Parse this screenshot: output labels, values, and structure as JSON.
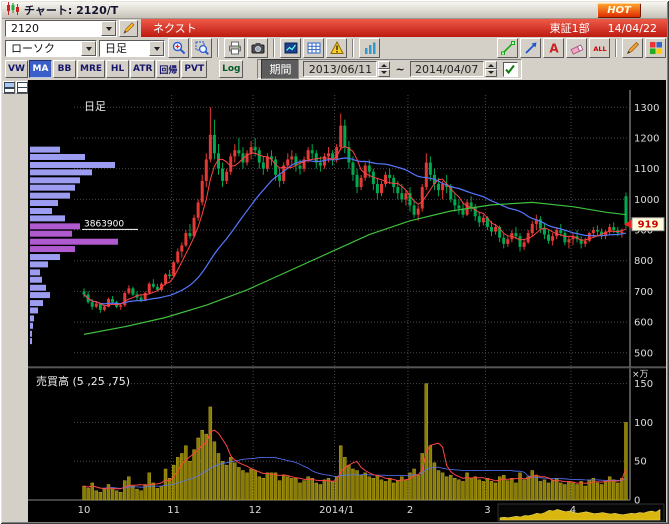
{
  "window": {
    "title": "チャート: 2120/T",
    "hot_label": "HOT"
  },
  "ticker_bar": {
    "code": "2120",
    "name": "ネクスト",
    "exchange": "東証1部",
    "date": "14/04/22"
  },
  "toolbar": {
    "chart_type": "ローソク",
    "timeframe": "日足",
    "left_icons": [
      {
        "name": "zoom-in-icon"
      },
      {
        "name": "zoom-area-icon"
      },
      {
        "name": "sep"
      },
      {
        "name": "print-icon"
      },
      {
        "name": "camera-icon"
      },
      {
        "name": "sep"
      },
      {
        "name": "board-icon"
      },
      {
        "name": "grid-icon"
      },
      {
        "name": "alert-icon"
      },
      {
        "name": "sep"
      },
      {
        "name": "chart-mode-icon"
      }
    ],
    "right_icons": [
      {
        "name": "trendline-icon"
      },
      {
        "name": "arrow-icon"
      },
      {
        "name": "text-icon"
      },
      {
        "name": "eraser-icon"
      },
      {
        "name": "clear-all-icon"
      },
      {
        "name": "sep"
      },
      {
        "name": "pen-icon"
      },
      {
        "name": "palette-icon"
      }
    ]
  },
  "indicator_bar": {
    "buttons": [
      {
        "label": "VW",
        "active": false
      },
      {
        "label": "MA",
        "active": true
      },
      {
        "label": "BB",
        "active": false
      },
      {
        "label": "MRE",
        "active": false
      },
      {
        "label": "HL",
        "active": false
      },
      {
        "label": "ATR",
        "active": false
      },
      {
        "label": "回帰",
        "active": false
      },
      {
        "label": "PVT",
        "active": false
      }
    ],
    "log_label": "Log",
    "period_label": "期間",
    "date_from": "2013/06/11",
    "tilde": "~",
    "date_to": "2014/04/07"
  },
  "chart": {
    "pane_label": "日足",
    "volume_label": "売買高 (5 ,25 ,75)",
    "volume_unit": "×万",
    "marker_value": "3863900",
    "current_price": "919",
    "colors": {
      "up": "#e53935",
      "down": "#00a84f",
      "ma5": "#ff4444",
      "ma25": "#5577ff",
      "ma75": "#3fbf3f",
      "volume": "#8a7d00",
      "volume_edge": "#c9b832",
      "profile": "#9c9cf0",
      "profile_hl": "#b05ad0",
      "minimap": "#d9b70e"
    }
  },
  "chart_data": {
    "type": "candlestick",
    "title": "日足",
    "subtitle": "売買高 (5 ,25 ,75)",
    "price_ylim": [
      470,
      1340
    ],
    "price_ticks": [
      1300,
      1200,
      1100,
      1000,
      900,
      800,
      700,
      600,
      500
    ],
    "volume_ylim": [
      0,
      165
    ],
    "volume_ticks": [
      150,
      100,
      50,
      0
    ],
    "x_labels": [
      {
        "label": "10",
        "i": 0
      },
      {
        "label": "11",
        "i": 22
      },
      {
        "label": "12",
        "i": 42
      },
      {
        "label": "2014/1",
        "i": 62
      },
      {
        "label": "2",
        "i": 80
      },
      {
        "label": "3",
        "i": 99
      },
      {
        "label": "4",
        "i": 120
      }
    ],
    "ma_periods": [
      5,
      25,
      75
    ],
    "marker_price": 912,
    "current_price_value": 919,
    "candles": [
      [
        700,
        710,
        680,
        690
      ],
      [
        690,
        700,
        660,
        665
      ],
      [
        665,
        675,
        640,
        650
      ],
      [
        650,
        668,
        645,
        660
      ],
      [
        660,
        662,
        630,
        640
      ],
      [
        640,
        655,
        635,
        650
      ],
      [
        650,
        680,
        648,
        675
      ],
      [
        675,
        685,
        660,
        665
      ],
      [
        665,
        670,
        645,
        650
      ],
      [
        650,
        660,
        640,
        655
      ],
      [
        655,
        700,
        650,
        695
      ],
      [
        695,
        720,
        690,
        710
      ],
      [
        710,
        715,
        685,
        690
      ],
      [
        690,
        700,
        670,
        680
      ],
      [
        680,
        690,
        665,
        670
      ],
      [
        670,
        700,
        668,
        695
      ],
      [
        695,
        730,
        690,
        725
      ],
      [
        725,
        740,
        710,
        715
      ],
      [
        715,
        725,
        700,
        705
      ],
      [
        705,
        730,
        700,
        725
      ],
      [
        725,
        760,
        720,
        755
      ],
      [
        755,
        770,
        740,
        750
      ],
      [
        750,
        800,
        745,
        795
      ],
      [
        795,
        840,
        790,
        830
      ],
      [
        830,
        860,
        810,
        850
      ],
      [
        850,
        900,
        845,
        890
      ],
      [
        890,
        920,
        870,
        880
      ],
      [
        880,
        950,
        875,
        940
      ],
      [
        940,
        1000,
        930,
        990
      ],
      [
        990,
        1080,
        980,
        1060
      ],
      [
        1060,
        1150,
        1040,
        1130
      ],
      [
        1130,
        1300,
        1120,
        1210
      ],
      [
        1210,
        1260,
        1130,
        1150
      ],
      [
        1150,
        1180,
        1080,
        1100
      ],
      [
        1100,
        1120,
        1040,
        1060
      ],
      [
        1060,
        1100,
        1050,
        1090
      ],
      [
        1090,
        1150,
        1080,
        1140
      ],
      [
        1140,
        1180,
        1120,
        1160
      ],
      [
        1160,
        1200,
        1140,
        1150
      ],
      [
        1150,
        1170,
        1100,
        1120
      ],
      [
        1120,
        1160,
        1110,
        1150
      ],
      [
        1150,
        1190,
        1130,
        1170
      ],
      [
        1170,
        1200,
        1140,
        1160
      ],
      [
        1160,
        1170,
        1100,
        1120
      ],
      [
        1120,
        1140,
        1080,
        1100
      ],
      [
        1100,
        1150,
        1090,
        1140
      ],
      [
        1140,
        1160,
        1110,
        1130
      ],
      [
        1130,
        1140,
        1060,
        1080
      ],
      [
        1080,
        1100,
        1040,
        1060
      ],
      [
        1060,
        1120,
        1050,
        1110
      ],
      [
        1110,
        1150,
        1100,
        1130
      ],
      [
        1130,
        1160,
        1110,
        1140
      ],
      [
        1140,
        1150,
        1090,
        1110
      ],
      [
        1110,
        1130,
        1080,
        1100
      ],
      [
        1100,
        1140,
        1090,
        1130
      ],
      [
        1130,
        1170,
        1120,
        1160
      ],
      [
        1160,
        1180,
        1130,
        1150
      ],
      [
        1150,
        1160,
        1100,
        1120
      ],
      [
        1120,
        1140,
        1090,
        1110
      ],
      [
        1110,
        1150,
        1100,
        1140
      ],
      [
        1140,
        1170,
        1120,
        1150
      ],
      [
        1150,
        1160,
        1110,
        1130
      ],
      [
        1130,
        1180,
        1120,
        1170
      ],
      [
        1170,
        1280,
        1160,
        1240
      ],
      [
        1240,
        1260,
        1150,
        1170
      ],
      [
        1170,
        1190,
        1100,
        1120
      ],
      [
        1120,
        1140,
        1060,
        1080
      ],
      [
        1080,
        1100,
        1020,
        1040
      ],
      [
        1040,
        1080,
        1030,
        1070
      ],
      [
        1070,
        1120,
        1060,
        1110
      ],
      [
        1110,
        1130,
        1070,
        1090
      ],
      [
        1090,
        1100,
        1030,
        1050
      ],
      [
        1050,
        1070,
        1000,
        1020
      ],
      [
        1020,
        1060,
        1010,
        1050
      ],
      [
        1050,
        1090,
        1040,
        1080
      ],
      [
        1080,
        1100,
        1050,
        1070
      ],
      [
        1070,
        1080,
        1020,
        1040
      ],
      [
        1040,
        1060,
        1000,
        1020
      ],
      [
        1020,
        1050,
        990,
        1000
      ],
      [
        1000,
        1030,
        980,
        1020
      ],
      [
        1020,
        1040,
        960,
        980
      ],
      [
        980,
        1000,
        940,
        950
      ],
      [
        950,
        980,
        930,
        970
      ],
      [
        970,
        1050,
        960,
        1040
      ],
      [
        1040,
        1150,
        1030,
        1120
      ],
      [
        1120,
        1140,
        1060,
        1080
      ],
      [
        1080,
        1100,
        1030,
        1050
      ],
      [
        1050,
        1070,
        1010,
        1030
      ],
      [
        1030,
        1060,
        1000,
        1050
      ],
      [
        1050,
        1080,
        1020,
        1040
      ],
      [
        1040,
        1050,
        990,
        1000
      ],
      [
        1000,
        1020,
        960,
        980
      ],
      [
        980,
        1000,
        950,
        970
      ],
      [
        970,
        990,
        940,
        950
      ],
      [
        950,
        1000,
        945,
        990
      ],
      [
        990,
        1010,
        960,
        975
      ],
      [
        975,
        985,
        930,
        945
      ],
      [
        945,
        960,
        910,
        925
      ],
      [
        925,
        950,
        915,
        940
      ],
      [
        940,
        945,
        900,
        910
      ],
      [
        910,
        930,
        880,
        895
      ],
      [
        895,
        920,
        885,
        910
      ],
      [
        910,
        915,
        860,
        875
      ],
      [
        875,
        890,
        840,
        855
      ],
      [
        855,
        880,
        845,
        870
      ],
      [
        870,
        900,
        860,
        890
      ],
      [
        890,
        910,
        870,
        880
      ],
      [
        880,
        890,
        830,
        845
      ],
      [
        845,
        870,
        835,
        860
      ],
      [
        860,
        900,
        855,
        890
      ],
      [
        890,
        930,
        880,
        920
      ],
      [
        920,
        950,
        900,
        935
      ],
      [
        935,
        945,
        890,
        905
      ],
      [
        905,
        920,
        870,
        885
      ],
      [
        885,
        900,
        855,
        865
      ],
      [
        865,
        890,
        850,
        880
      ],
      [
        880,
        910,
        870,
        900
      ],
      [
        900,
        920,
        880,
        890
      ],
      [
        890,
        900,
        850,
        860
      ],
      [
        860,
        880,
        840,
        870
      ],
      [
        870,
        890,
        850,
        880
      ],
      [
        880,
        900,
        860,
        870
      ],
      [
        870,
        880,
        840,
        855
      ],
      [
        855,
        875,
        845,
        865
      ],
      [
        865,
        895,
        860,
        890
      ],
      [
        890,
        910,
        875,
        900
      ],
      [
        900,
        915,
        880,
        895
      ],
      [
        895,
        905,
        870,
        880
      ],
      [
        880,
        900,
        870,
        895
      ],
      [
        895,
        920,
        885,
        910
      ],
      [
        910,
        925,
        890,
        900
      ],
      [
        900,
        910,
        880,
        890
      ],
      [
        890,
        905,
        875,
        895
      ],
      [
        1010,
        1022,
        905,
        919
      ]
    ],
    "volumes": [
      18,
      15,
      22,
      12,
      10,
      14,
      20,
      16,
      12,
      10,
      25,
      30,
      18,
      14,
      12,
      20,
      35,
      22,
      15,
      18,
      40,
      28,
      45,
      55,
      60,
      70,
      50,
      65,
      80,
      90,
      85,
      120,
      75,
      60,
      50,
      45,
      55,
      48,
      42,
      38,
      35,
      40,
      38,
      30,
      28,
      35,
      35,
      35,
      25,
      32,
      30,
      28,
      28,
      22,
      25,
      30,
      28,
      22,
      20,
      26,
      28,
      24,
      30,
      70,
      55,
      45,
      40,
      38,
      32,
      35,
      30,
      28,
      32,
      26,
      24,
      28,
      22,
      25,
      30,
      26,
      35,
      40,
      32,
      60,
      150,
      70,
      48,
      38,
      35,
      30,
      32,
      28,
      26,
      24,
      35,
      28,
      30,
      26,
      24,
      28,
      24,
      22,
      30,
      32,
      25,
      28,
      22,
      35,
      26,
      30,
      38,
      32,
      24,
      26,
      22,
      25,
      28,
      22,
      20,
      24,
      22,
      20,
      24,
      18,
      26,
      28,
      22,
      20,
      24,
      30,
      26,
      22,
      28,
      100
    ],
    "ma75_points": [
      [
        0,
        560
      ],
      [
        10,
        585
      ],
      [
        20,
        615
      ],
      [
        30,
        655
      ],
      [
        40,
        705
      ],
      [
        50,
        765
      ],
      [
        60,
        825
      ],
      [
        70,
        885
      ],
      [
        80,
        930
      ],
      [
        90,
        962
      ],
      [
        100,
        982
      ],
      [
        110,
        990
      ],
      [
        120,
        976
      ],
      [
        128,
        958
      ],
      [
        133,
        950
      ]
    ],
    "volume_profile": [
      [
        1162,
        0.3,
        0
      ],
      [
        1138,
        0.55,
        0
      ],
      [
        1112,
        0.85,
        0
      ],
      [
        1088,
        0.62,
        0
      ],
      [
        1062,
        0.5,
        0
      ],
      [
        1038,
        0.45,
        0
      ],
      [
        1012,
        0.4,
        0
      ],
      [
        988,
        0.28,
        0
      ],
      [
        962,
        0.22,
        0
      ],
      [
        938,
        0.35,
        0
      ],
      [
        912,
        0.5,
        1
      ],
      [
        888,
        0.42,
        1
      ],
      [
        862,
        0.88,
        1
      ],
      [
        838,
        0.45,
        1
      ],
      [
        812,
        0.3,
        0
      ],
      [
        788,
        0.18,
        0
      ],
      [
        762,
        0.1,
        0
      ],
      [
        738,
        0.12,
        0
      ],
      [
        712,
        0.16,
        0
      ],
      [
        688,
        0.2,
        0
      ],
      [
        662,
        0.13,
        0
      ],
      [
        638,
        0.08,
        0
      ],
      [
        612,
        0.04,
        0
      ],
      [
        588,
        0.03,
        0
      ],
      [
        562,
        0.02,
        0
      ],
      [
        538,
        0.02,
        0
      ]
    ],
    "minimap": [
      0.15,
      0.18,
      0.15,
      0.2,
      0.25,
      0.2,
      0.3,
      0.28,
      0.35,
      0.45,
      0.4,
      0.5,
      0.65,
      0.6,
      0.7,
      0.62,
      0.55,
      0.6,
      0.5,
      0.45,
      0.5,
      0.55,
      0.48,
      0.42,
      0.45,
      0.5,
      0.44,
      0.4,
      0.45,
      0.38,
      0.35,
      0.4,
      0.45,
      0.42,
      0.5,
      0.46,
      0.55,
      0.6,
      0.52,
      0.7
    ]
  }
}
